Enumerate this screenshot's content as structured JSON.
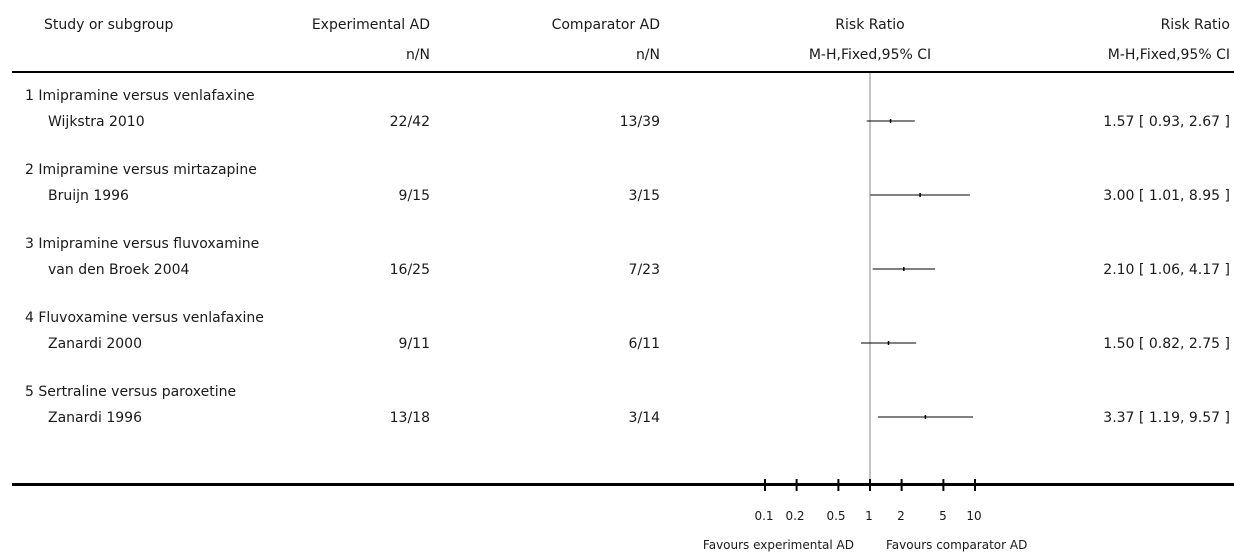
{
  "header": {
    "col_study": "Study or subgroup",
    "col_exp": "Experimental AD",
    "col_exp_sub": "n/N",
    "col_comp": "Comparator AD",
    "col_comp_sub": "n/N",
    "col_plot": "Risk Ratio",
    "col_plot_sub": "M-H,Fixed,95% CI",
    "col_rr": "Risk Ratio",
    "col_rr_sub": "M-H,Fixed,95% CI"
  },
  "colors": {
    "text": "#1a1a1a",
    "lines": "#000000",
    "ref_line": "#888888"
  },
  "chart_data": {
    "type": "forest",
    "x_scale": "log",
    "xlim": [
      0.1,
      10
    ],
    "ticks": [
      0.1,
      0.2,
      0.5,
      1,
      2,
      5,
      10
    ],
    "tick_labels": [
      "0.1",
      "0.2",
      "0.5",
      "1",
      "2",
      "5",
      "10"
    ],
    "favours_left": "Favours experimental AD",
    "favours_right": "Favours comparator AD",
    "subgroups": [
      {
        "title": "1 Imipramine versus venlafaxine",
        "study": "Wijkstra 2010",
        "exp": "22/42",
        "comp": "13/39",
        "rr": 1.57,
        "lo": 0.93,
        "hi": 2.67,
        "rr_text": "1.57 [ 0.93, 2.67 ]"
      },
      {
        "title": "2 Imipramine versus mirtazapine",
        "study": "Bruijn 1996",
        "exp": "9/15",
        "comp": "3/15",
        "rr": 3.0,
        "lo": 1.01,
        "hi": 8.95,
        "rr_text": "3.00 [ 1.01, 8.95 ]"
      },
      {
        "title": "3 Imipramine versus fluvoxamine",
        "study": "van den Broek 2004",
        "exp": "16/25",
        "comp": "7/23",
        "rr": 2.1,
        "lo": 1.06,
        "hi": 4.17,
        "rr_text": "2.10 [ 1.06, 4.17 ]"
      },
      {
        "title": "4 Fluvoxamine versus venlafaxine",
        "study": "Zanardi 2000",
        "exp": "9/11",
        "comp": "6/11",
        "rr": 1.5,
        "lo": 0.82,
        "hi": 2.75,
        "rr_text": "1.50 [ 0.82, 2.75 ]"
      },
      {
        "title": "5 Sertraline versus paroxetine",
        "study": "Zanardi 1996",
        "exp": "13/18",
        "comp": "3/14",
        "rr": 3.37,
        "lo": 1.19,
        "hi": 9.57,
        "rr_text": "3.37 [ 1.19, 9.57 ]"
      }
    ]
  }
}
